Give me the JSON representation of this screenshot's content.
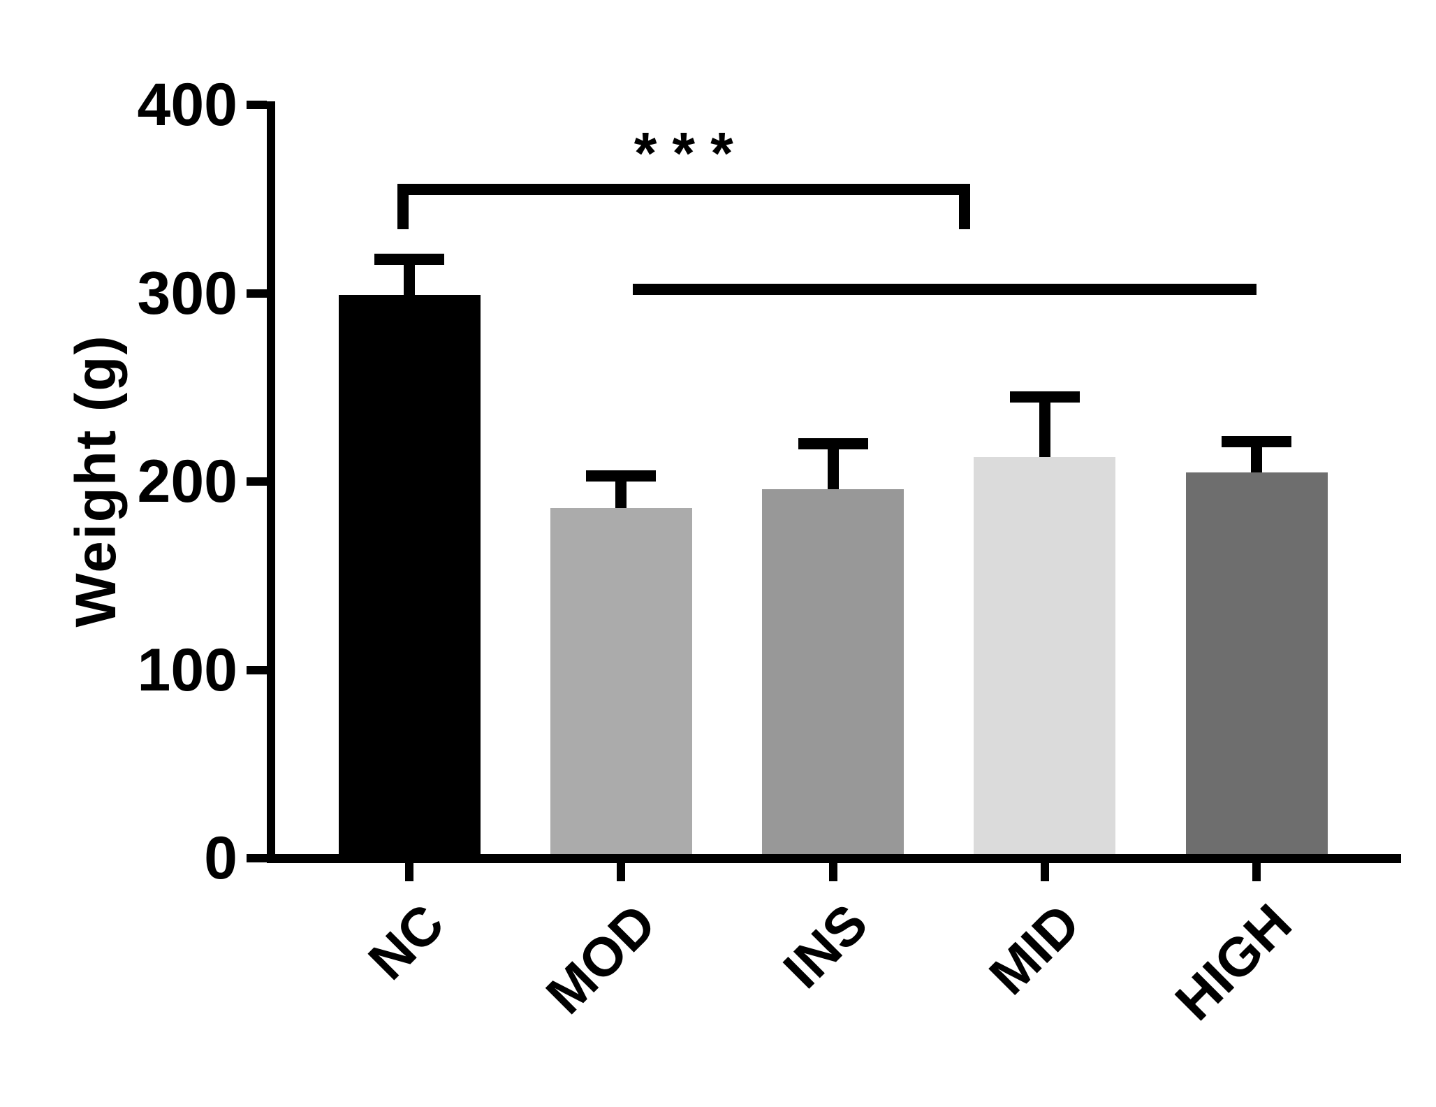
{
  "figure": {
    "background": "#ffffff",
    "ink_color": "#000000"
  },
  "chart_data": {
    "type": "bar",
    "title": "",
    "ylabel": "Weight (g)",
    "xlabel": "",
    "ylim": [
      0,
      400
    ],
    "yticks": [
      0,
      100,
      200,
      300,
      400
    ],
    "ytick_labels": [
      "0",
      "100",
      "200",
      "300",
      "400"
    ],
    "categories": [
      "NC",
      "MOD",
      "INS",
      "MID",
      "HIGH"
    ],
    "values": [
      299,
      186,
      196,
      213,
      205
    ],
    "errors_sd_upper": [
      22,
      20,
      27,
      35,
      19
    ],
    "error_style": "upper whisker with cap",
    "bar_colors": [
      "#000000",
      "#ABABAB",
      "#989898",
      "#DBDBDB",
      "#6E6E6E"
    ],
    "grid": false,
    "legend": "none",
    "annotations": {
      "bracket": {
        "label": "***",
        "from_category": "NC",
        "to_position_index": 2.62,
        "top_value": 355,
        "tail_value": 334
      },
      "comparison_line": {
        "from_category": "MOD",
        "to_category": "HIGH",
        "value": 302
      }
    }
  }
}
